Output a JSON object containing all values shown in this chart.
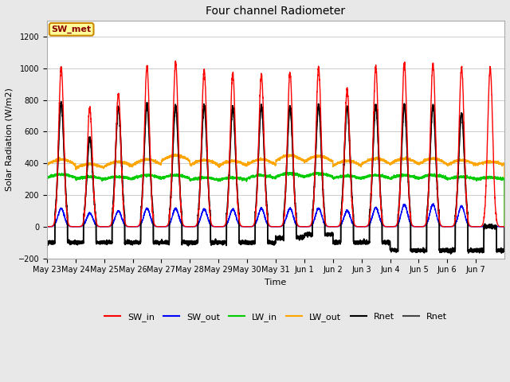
{
  "title": "Four channel Radiometer",
  "xlabel": "Time",
  "ylabel": "Solar Radiation (W/m2)",
  "ylim": [
    -200,
    1300
  ],
  "yticks": [
    -200,
    0,
    200,
    400,
    600,
    800,
    1000,
    1200
  ],
  "annotation_text": "SW_met",
  "annotation_color": "#8B0000",
  "annotation_bg": "#FFFF99",
  "annotation_border": "#CC8800",
  "fig_bg": "#E8E8E8",
  "plot_bg": "#FFFFFF",
  "num_days": 16,
  "x_labels": [
    "May 23",
    "May 24",
    "May 25",
    "May 26",
    "May 27",
    "May 28",
    "May 29",
    "May 30",
    "May 31",
    "Jun 1",
    "Jun 2",
    "Jun 3",
    "Jun 4",
    "Jun 5",
    "Jun 6",
    "Jun 7"
  ],
  "SW_in_peak": [
    1005,
    750,
    840,
    1010,
    1040,
    990,
    970,
    960,
    975,
    1000,
    870,
    1005,
    1030,
    1030,
    1005,
    1000
  ],
  "SW_out_peak": [
    115,
    85,
    100,
    115,
    115,
    110,
    110,
    115,
    115,
    115,
    100,
    120,
    140,
    140,
    130,
    10
  ],
  "LW_in_base": [
    310,
    300,
    300,
    305,
    305,
    295,
    295,
    305,
    315,
    315,
    305,
    305,
    305,
    305,
    300,
    300
  ],
  "LW_in_amp": [
    20,
    15,
    15,
    20,
    20,
    15,
    15,
    20,
    20,
    20,
    15,
    20,
    20,
    20,
    15,
    10
  ],
  "LW_out_base": [
    390,
    370,
    380,
    390,
    415,
    390,
    385,
    390,
    415,
    410,
    385,
    395,
    395,
    395,
    390,
    390
  ],
  "LW_out_amp": [
    35,
    25,
    30,
    35,
    35,
    30,
    30,
    35,
    35,
    35,
    30,
    35,
    35,
    35,
    30,
    20
  ],
  "Rnet_peak": [
    780,
    560,
    755,
    770,
    760,
    765,
    755,
    765,
    755,
    765,
    755,
    765,
    765,
    765,
    715,
    0
  ],
  "Rnet_trough": [
    -100,
    -100,
    -100,
    -100,
    -100,
    -100,
    -100,
    -100,
    -70,
    -50,
    -100,
    -100,
    -150,
    -150,
    -150,
    -150
  ],
  "colors": {
    "SW_in": "#FF0000",
    "SW_out": "#0000FF",
    "LW_in": "#00CC00",
    "LW_out": "#FFA500",
    "Rnet": "#000000",
    "Rnet2": "#444444"
  },
  "linewidths": {
    "SW_in": 1.0,
    "SW_out": 1.0,
    "LW_in": 1.0,
    "LW_out": 1.0,
    "Rnet": 1.2,
    "Rnet2": 1.2
  },
  "grid_color": "#CCCCCC",
  "title_fontsize": 10,
  "label_fontsize": 8,
  "tick_fontsize": 7,
  "legend_fontsize": 8
}
